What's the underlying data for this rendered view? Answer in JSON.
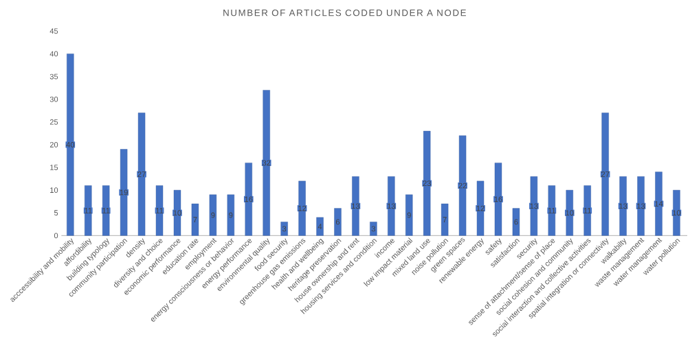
{
  "chart_data": {
    "type": "bar",
    "title": "NUMBER OF ARTICLES CODED UNDER A NODE",
    "categories": [
      "acccessibility and mobility",
      "affordibility",
      "building typology",
      "community participation",
      "density",
      "diversity and choice",
      "economic performance",
      "education rate",
      "employment",
      "energy consciousness or behavior",
      "energy performance",
      "environmental quality",
      "food security",
      "greenhouse gas emissions",
      "health and wellbeing",
      "heritage preservation",
      "house ownership and rent",
      "housing services and condition",
      "income",
      "low impact material",
      "mixed land use",
      "noise pollution",
      "green spaces",
      "renewable energy",
      "safety",
      "satisfaction",
      "security",
      "sense of attachment/sense of place",
      "social cohesion and community",
      "social interaction and collective activities",
      "spatial integration or connectivity",
      "walkabilty",
      "waste management",
      "water management",
      "water pollution"
    ],
    "values": [
      40,
      11,
      11,
      19,
      27,
      11,
      10,
      7,
      9,
      9,
      16,
      32,
      3,
      12,
      4,
      6,
      13,
      3,
      13,
      9,
      23,
      7,
      22,
      12,
      16,
      6,
      13,
      11,
      10,
      11,
      27,
      13,
      13,
      14,
      10
    ],
    "color": "#4472c4",
    "ylim": [
      0,
      45
    ],
    "yticks": [
      0,
      5,
      10,
      15,
      20,
      25,
      30,
      35,
      40,
      45
    ],
    "data_labels": true
  }
}
